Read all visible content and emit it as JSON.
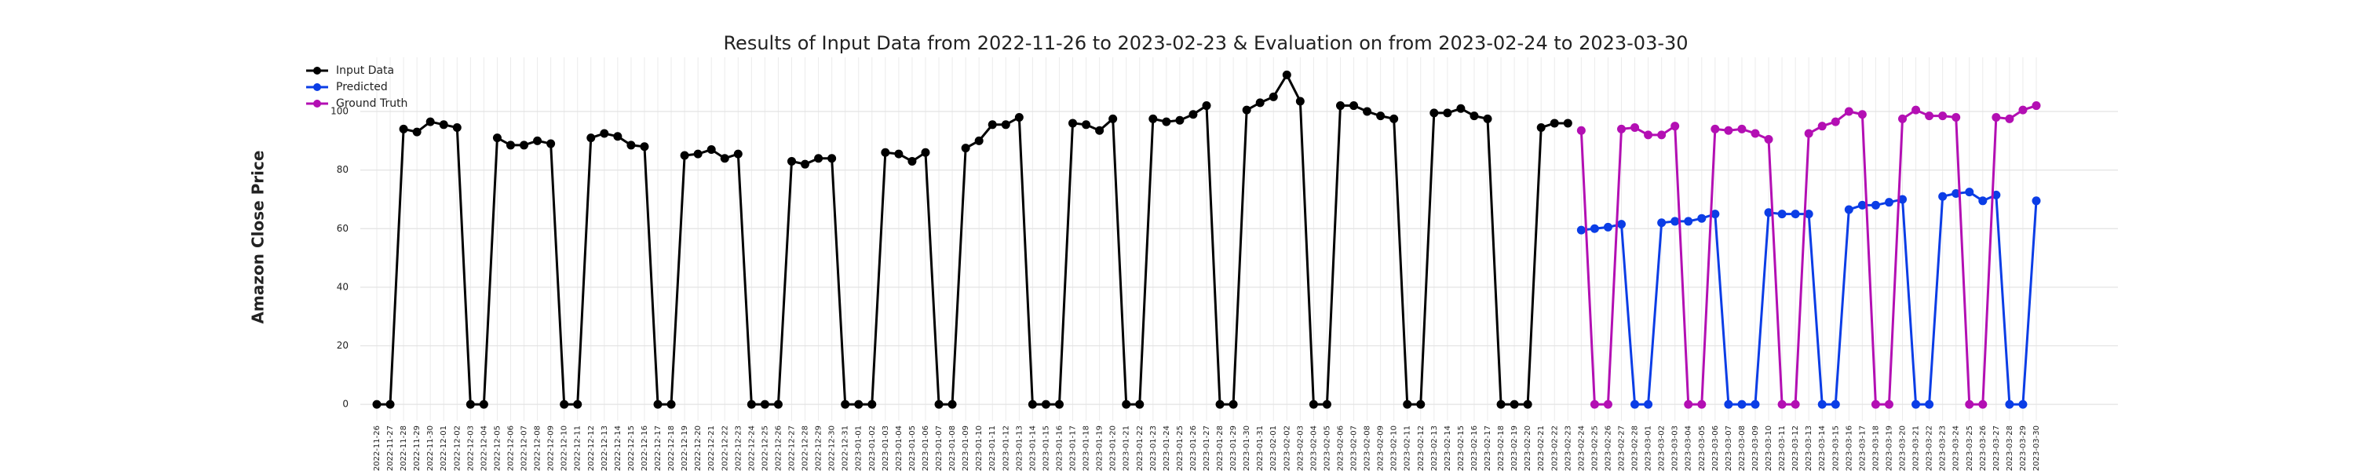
{
  "chart_data": {
    "type": "line",
    "title": "Results of Input Data from 2022-11-26 to 2023-02-23 & Evaluation on from 2023-02-24 to 2023-03-30",
    "y_label": "Amazon Close Price",
    "categories": [
      "2022-11-26",
      "2022-11-27",
      "2022-11-28",
      "2022-11-29",
      "2022-11-30",
      "2022-12-01",
      "2022-12-02",
      "2022-12-03",
      "2022-12-04",
      "2022-12-05",
      "2022-12-06",
      "2022-12-07",
      "2022-12-08",
      "2022-12-09",
      "2022-12-10",
      "2022-12-11",
      "2022-12-12",
      "2022-12-13",
      "2022-12-14",
      "2022-12-15",
      "2022-12-16",
      "2022-12-17",
      "2022-12-18",
      "2022-12-19",
      "2022-12-20",
      "2022-12-21",
      "2022-12-22",
      "2022-12-23",
      "2022-12-24",
      "2022-12-25",
      "2022-12-26",
      "2022-12-27",
      "2022-12-28",
      "2022-12-29",
      "2022-12-30",
      "2022-12-31",
      "2023-01-01",
      "2023-01-02",
      "2023-01-03",
      "2023-01-04",
      "2023-01-05",
      "2023-01-06",
      "2023-01-07",
      "2023-01-08",
      "2023-01-09",
      "2023-01-10",
      "2023-01-11",
      "2023-01-12",
      "2023-01-13",
      "2023-01-14",
      "2023-01-15",
      "2023-01-16",
      "2023-01-17",
      "2023-01-18",
      "2023-01-19",
      "2023-01-20",
      "2023-01-21",
      "2023-01-22",
      "2023-01-23",
      "2023-01-24",
      "2023-01-25",
      "2023-01-26",
      "2023-01-27",
      "2023-01-28",
      "2023-01-29",
      "2023-01-30",
      "2023-01-31",
      "2023-02-01",
      "2023-02-02",
      "2023-02-03",
      "2023-02-04",
      "2023-02-05",
      "2023-02-06",
      "2023-02-07",
      "2023-02-08",
      "2023-02-09",
      "2023-02-10",
      "2023-02-11",
      "2023-02-12",
      "2023-02-13",
      "2023-02-14",
      "2023-02-15",
      "2023-02-16",
      "2023-02-17",
      "2023-02-18",
      "2023-02-19",
      "2023-02-20",
      "2023-02-21",
      "2023-02-22",
      "2023-02-23",
      "2023-02-24",
      "2023-02-25",
      "2023-02-26",
      "2023-02-27",
      "2023-02-28",
      "2023-03-01",
      "2023-03-02",
      "2023-03-03",
      "2023-03-04",
      "2023-03-05",
      "2023-03-06",
      "2023-03-07",
      "2023-03-08",
      "2023-03-09",
      "2023-03-10",
      "2023-03-11",
      "2023-03-12",
      "2023-03-13",
      "2023-03-14",
      "2023-03-15",
      "2023-03-16",
      "2023-03-17",
      "2023-03-18",
      "2023-03-19",
      "2023-03-20",
      "2023-03-21",
      "2023-03-22",
      "2023-03-23",
      "2023-03-24",
      "2023-03-25",
      "2023-03-26",
      "2023-03-27",
      "2023-03-28",
      "2023-03-29",
      "2023-03-30"
    ],
    "series": [
      {
        "name": "Input Data",
        "color": "#000000",
        "values": [
          0,
          0,
          94,
          93,
          96.5,
          95.5,
          94.5,
          0,
          0,
          91,
          88.5,
          88.5,
          90,
          89,
          0,
          0,
          91,
          92.5,
          91.5,
          88.5,
          88,
          0,
          0,
          85,
          85.5,
          87,
          84,
          85.5,
          0,
          0,
          0,
          83,
          82,
          84,
          84,
          0,
          0,
          0,
          86,
          85.5,
          83,
          86,
          0,
          0,
          87.5,
          90,
          95.5,
          95.5,
          98,
          0,
          0,
          0,
          96,
          95.5,
          93.5,
          97.5,
          0,
          0,
          97.5,
          96.5,
          97,
          99,
          102,
          0,
          0,
          100.5,
          103,
          105,
          112.5,
          103.5,
          0,
          0,
          102,
          102,
          100,
          98.5,
          97.5,
          0,
          0,
          99.5,
          99.5,
          101,
          98.5,
          97.5,
          0,
          0,
          0,
          94.5,
          96,
          96,
          null,
          null,
          null,
          null,
          null,
          null,
          null,
          null,
          null,
          null,
          null,
          null,
          null,
          null,
          null,
          null,
          null,
          null,
          null,
          null,
          null,
          null,
          null,
          null,
          null,
          null,
          null,
          null,
          null,
          null,
          null,
          null,
          null,
          null,
          null
        ]
      },
      {
        "name": "Predicted",
        "color": "#0b3de6",
        "values": [
          null,
          null,
          null,
          null,
          null,
          null,
          null,
          null,
          null,
          null,
          null,
          null,
          null,
          null,
          null,
          null,
          null,
          null,
          null,
          null,
          null,
          null,
          null,
          null,
          null,
          null,
          null,
          null,
          null,
          null,
          null,
          null,
          null,
          null,
          null,
          null,
          null,
          null,
          null,
          null,
          null,
          null,
          null,
          null,
          null,
          null,
          null,
          null,
          null,
          null,
          null,
          null,
          null,
          null,
          null,
          null,
          null,
          null,
          null,
          null,
          null,
          null,
          null,
          null,
          null,
          null,
          null,
          null,
          null,
          null,
          null,
          null,
          null,
          null,
          null,
          null,
          null,
          null,
          null,
          null,
          null,
          null,
          null,
          null,
          null,
          null,
          null,
          null,
          null,
          null,
          59.5,
          60,
          60.5,
          61.5,
          0,
          0,
          62,
          62.5,
          62.5,
          63.5,
          65,
          0,
          0,
          0,
          65.5,
          65,
          65,
          65,
          0,
          0,
          66.5,
          68,
          68,
          69,
          70,
          0,
          0,
          71,
          72,
          72.5,
          69.5,
          71.5,
          0,
          0,
          69.5
        ]
      },
      {
        "name": "Ground Truth",
        "color": "#b30fb3",
        "values": [
          null,
          null,
          null,
          null,
          null,
          null,
          null,
          null,
          null,
          null,
          null,
          null,
          null,
          null,
          null,
          null,
          null,
          null,
          null,
          null,
          null,
          null,
          null,
          null,
          null,
          null,
          null,
          null,
          null,
          null,
          null,
          null,
          null,
          null,
          null,
          null,
          null,
          null,
          null,
          null,
          null,
          null,
          null,
          null,
          null,
          null,
          null,
          null,
          null,
          null,
          null,
          null,
          null,
          null,
          null,
          null,
          null,
          null,
          null,
          null,
          null,
          null,
          null,
          null,
          null,
          null,
          null,
          null,
          null,
          null,
          null,
          null,
          null,
          null,
          null,
          null,
          null,
          null,
          null,
          null,
          null,
          null,
          null,
          null,
          null,
          null,
          null,
          null,
          null,
          null,
          93.5,
          0,
          0,
          94,
          94.5,
          92,
          92,
          95,
          0,
          0,
          94,
          93.5,
          94,
          92.5,
          90.5,
          0,
          0,
          92.5,
          95,
          96.5,
          100,
          99,
          0,
          0,
          97.5,
          100.5,
          98.5,
          98.5,
          98,
          0,
          0,
          98,
          97.5,
          100.5,
          102
        ]
      }
    ],
    "ylim": [
      -5.6,
      118.5
    ],
    "yticks": [
      0,
      20,
      40,
      60,
      80,
      100
    ],
    "grid": true,
    "legend": "upper left"
  }
}
